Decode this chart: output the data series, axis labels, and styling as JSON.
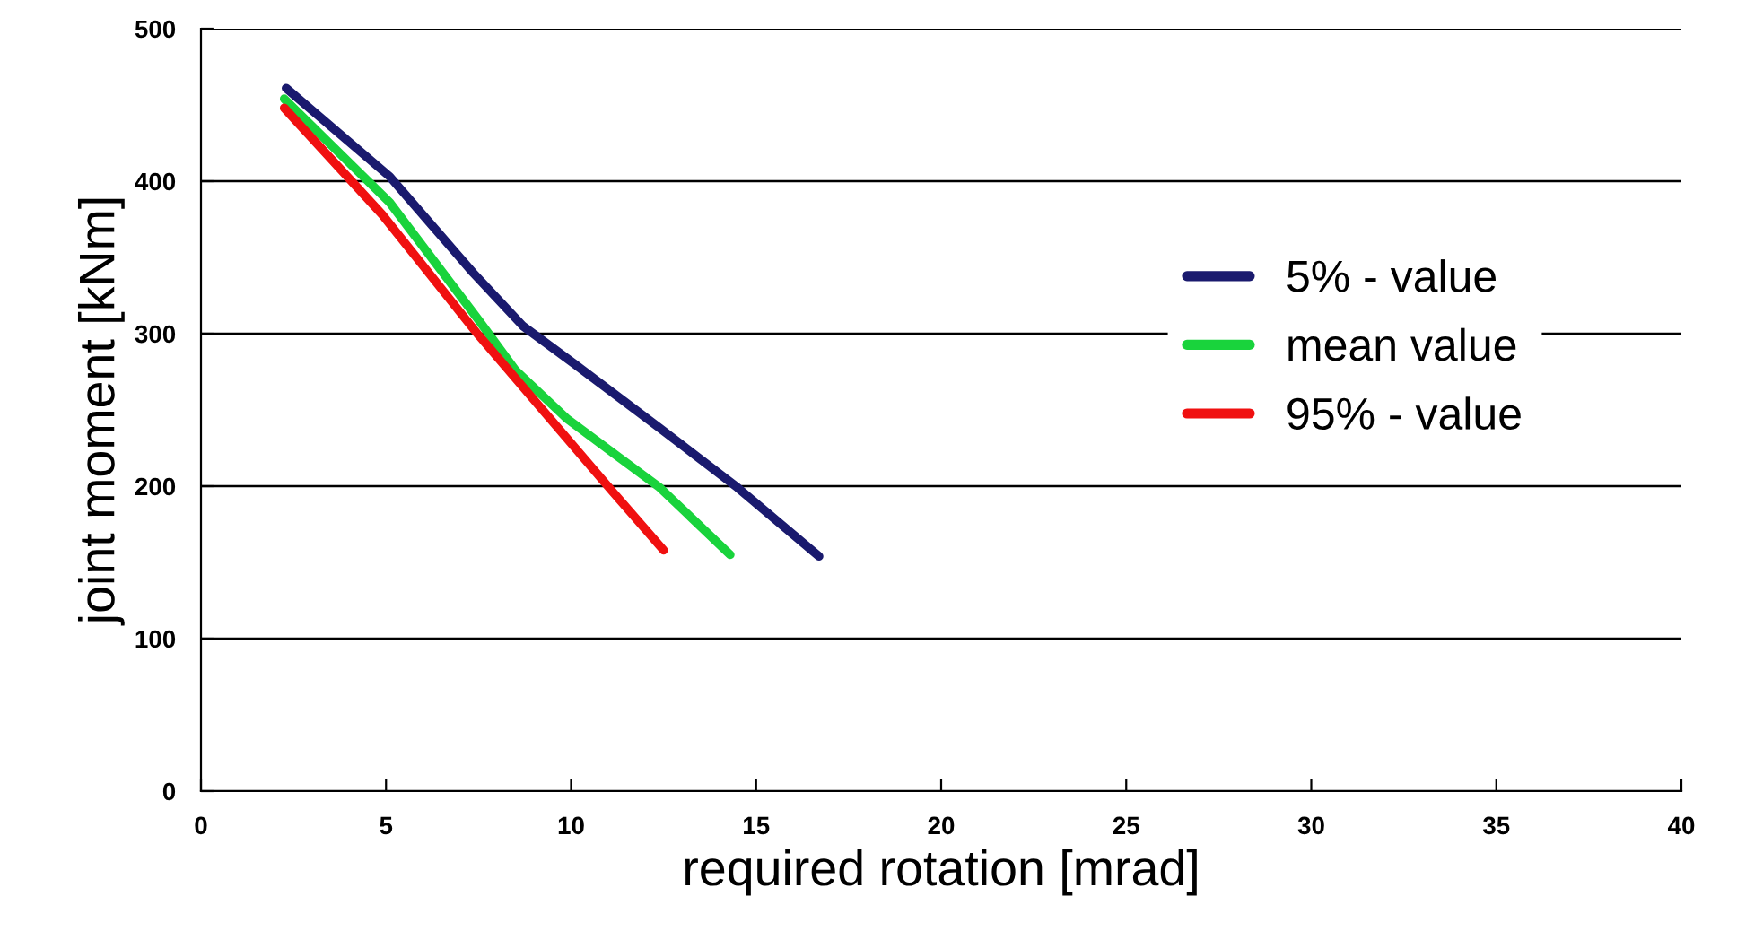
{
  "chart_data": {
    "type": "line",
    "xlabel": "required rotation [mrad]",
    "ylabel": "joint moment [kNm]",
    "xlim": [
      0,
      40
    ],
    "xticks": [
      0,
      5,
      10,
      15,
      20,
      25,
      30,
      35,
      40
    ],
    "ylim": [
      0,
      500
    ],
    "yticks": [
      0,
      100,
      200,
      300,
      400,
      500
    ],
    "grid": "y",
    "legend": "right",
    "marker": "none",
    "line_style": "solid",
    "series": [
      {
        "name": "5% - value",
        "color": "#1a1a6e",
        "x": [
          2.3,
          5.1,
          7.35,
          8.7,
          10.1,
          12.4,
          14.5,
          16.7
        ],
        "values": [
          461,
          403,
          340,
          305,
          280,
          238,
          199,
          154
        ]
      },
      {
        "name": "mean value",
        "color": "#19d33c",
        "x": [
          2.25,
          5.1,
          7.5,
          8.5,
          9.9,
          12.4,
          14.3
        ],
        "values": [
          454,
          386,
          309,
          276,
          244,
          199,
          155
        ]
      },
      {
        "name": "95% - value",
        "color": "#f01010",
        "x": [
          2.25,
          4.9,
          7.5,
          11.1,
          12.5
        ],
        "values": [
          448,
          378,
          299,
          197,
          158
        ]
      }
    ]
  }
}
